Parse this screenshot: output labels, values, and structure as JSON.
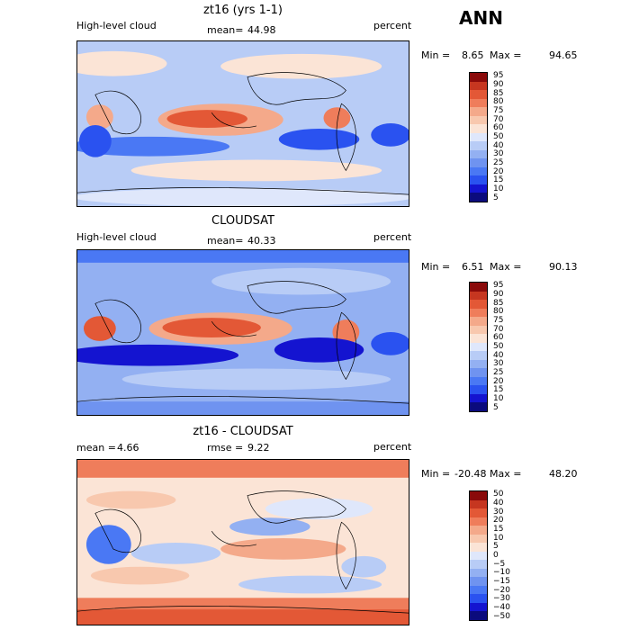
{
  "season": "ANN",
  "colors": {
    "full": [
      "#0b0b7d",
      "#1414d0",
      "#2a52f0",
      "#4a78f4",
      "#6f93f0",
      "#93b0f2",
      "#b8ccf6",
      "#dfe7fb",
      "#fbe4d6",
      "#f8c8ae",
      "#f4a98a",
      "#ef7d5b",
      "#e35836",
      "#c63620",
      "#8a0a0a"
    ],
    "diff": [
      "#0b0b7d",
      "#1414d0",
      "#2a52f0",
      "#4a78f4",
      "#6f93f0",
      "#93b0f2",
      "#b8ccf6",
      "#dfe7fb",
      "#fbe4d6",
      "#f8c8ae",
      "#f4a98a",
      "#ef7d5b",
      "#e35836",
      "#c63620",
      "#8a0a0a"
    ]
  },
  "panels": [
    {
      "title": "zt16 (yrs 1-1)",
      "left_label": "High-level cloud",
      "mean_label": "mean=",
      "mean_value": "44.98",
      "units": "percent",
      "min_label": "Min =",
      "min_value": "8.65",
      "max_label": "Max =",
      "max_value": "94.65",
      "ticks": [
        "95",
        "90",
        "85",
        "80",
        "75",
        "70",
        "60",
        "50",
        "40",
        "30",
        "25",
        "20",
        "15",
        "10",
        "5"
      ]
    },
    {
      "title": "CLOUDSAT",
      "left_label": "High-level cloud",
      "mean_label": "mean=",
      "mean_value": "40.33",
      "units": "percent",
      "min_label": "Min =",
      "min_value": "6.51",
      "max_label": "Max =",
      "max_value": "90.13",
      "ticks": [
        "95",
        "90",
        "85",
        "80",
        "75",
        "70",
        "60",
        "50",
        "40",
        "30",
        "25",
        "20",
        "15",
        "10",
        "5"
      ]
    },
    {
      "title": "zt16 - CLOUDSAT",
      "left_label": "mean =",
      "mean_label": "rmse =",
      "left_value": "4.66",
      "mean_value": "9.22",
      "units": "percent",
      "min_label": "Min =",
      "min_value": "-20.48",
      "max_label": "Max =",
      "max_value": "48.20",
      "ticks": [
        "50",
        "40",
        "30",
        "20",
        "15",
        "10",
        "5",
        "0",
        "−5",
        "−10",
        "−15",
        "−20",
        "−30",
        "−40",
        "−50"
      ]
    }
  ]
}
